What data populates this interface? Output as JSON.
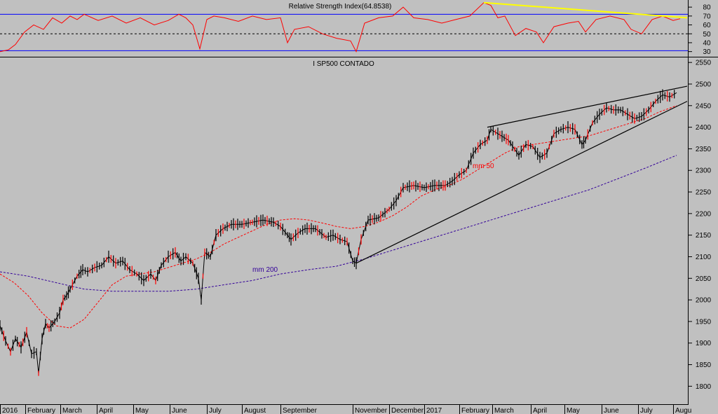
{
  "chart_data": [
    {
      "type": "line",
      "title": "Relative Strength Index(64.8538)",
      "ylim": [
        25,
        88
      ],
      "yticks": [
        30,
        40,
        50,
        60,
        70,
        80
      ],
      "reference_lines": [
        {
          "value": 72,
          "style": "solid",
          "color": "#0000ff"
        },
        {
          "value": 50,
          "style": "dashed",
          "color": "#000000"
        },
        {
          "value": 31,
          "style": "solid",
          "color": "#0000ff"
        }
      ],
      "series": [
        {
          "color": "#ff0000",
          "x": [
            0,
            12,
            22,
            35,
            48,
            62,
            75,
            88,
            100,
            110,
            120,
            140,
            160,
            180,
            200,
            220,
            240,
            255,
            265,
            275,
            285,
            295,
            305,
            320,
            340,
            360,
            380,
            400,
            410,
            420,
            440,
            460,
            480,
            500,
            508,
            520,
            540,
            560,
            575,
            590,
            610,
            630,
            650,
            670,
            690,
            700,
            710,
            720,
            735,
            750,
            765,
            775,
            790,
            810,
            825,
            835,
            850,
            870,
            890,
            900,
            915,
            930,
            945,
            960,
            970
          ],
          "y": [
            30,
            32,
            38,
            52,
            60,
            55,
            68,
            62,
            70,
            66,
            72,
            65,
            70,
            62,
            68,
            60,
            65,
            72,
            68,
            60,
            33,
            66,
            70,
            68,
            64,
            70,
            66,
            68,
            40,
            55,
            58,
            50,
            45,
            42,
            30,
            62,
            68,
            70,
            80,
            68,
            66,
            62,
            66,
            70,
            85,
            82,
            68,
            70,
            48,
            56,
            52,
            40,
            58,
            62,
            64,
            52,
            66,
            70,
            66,
            55,
            50,
            66,
            70,
            65,
            67
          ]
        }
      ],
      "annotations": [
        {
          "type": "trendline",
          "color": "#ffff00",
          "x": [
            690,
            980
          ],
          "y": [
            85,
            68
          ]
        }
      ]
    },
    {
      "type": "line",
      "title": "I SP500 CONTADO",
      "ylim": [
        1760,
        2560
      ],
      "yticks": [
        1800,
        1850,
        1900,
        1950,
        2000,
        2050,
        2100,
        2150,
        2200,
        2250,
        2300,
        2350,
        2400,
        2450,
        2500,
        2550
      ],
      "xlabels": [
        "2016",
        "February",
        "March",
        "April",
        "May",
        "June",
        "July",
        "August",
        "September",
        "November",
        "December",
        "2017",
        "February",
        "March",
        "April",
        "May",
        "June",
        "July",
        "Augu"
      ],
      "series": [
        {
          "name": "price",
          "color": "#000000",
          "x": [
            0,
            8,
            15,
            22,
            30,
            38,
            45,
            52,
            55,
            60,
            65,
            70,
            78,
            85,
            90,
            95,
            100,
            110,
            118,
            125,
            135,
            145,
            155,
            165,
            175,
            185,
            195,
            205,
            215,
            222,
            230,
            240,
            250,
            258,
            265,
            275,
            283,
            287,
            292,
            300,
            308,
            318,
            330,
            345,
            360,
            375,
            390,
            400,
            410,
            415,
            425,
            435,
            450,
            465,
            475,
            485,
            495,
            503,
            508,
            515,
            525,
            540,
            555,
            565,
            575,
            590,
            605,
            620,
            635,
            645,
            655,
            665,
            675,
            685,
            695,
            700,
            710,
            725,
            740,
            750,
            760,
            770,
            780,
            790,
            800,
            810,
            820,
            830,
            835,
            845,
            855,
            865,
            875,
            885,
            895,
            905,
            915,
            925,
            935,
            945,
            955,
            965
          ],
          "y": [
            1940,
            1905,
            1880,
            1910,
            1890,
            1925,
            1875,
            1880,
            1830,
            1910,
            1945,
            1935,
            1950,
            1970,
            2000,
            2010,
            2025,
            2055,
            2070,
            2065,
            2075,
            2080,
            2100,
            2085,
            2090,
            2070,
            2060,
            2045,
            2060,
            2045,
            2080,
            2100,
            2110,
            2090,
            2100,
            2085,
            2050,
            2000,
            2110,
            2100,
            2150,
            2165,
            2175,
            2175,
            2180,
            2185,
            2180,
            2170,
            2150,
            2140,
            2155,
            2165,
            2165,
            2145,
            2150,
            2140,
            2135,
            2090,
            2085,
            2140,
            2185,
            2190,
            2210,
            2230,
            2260,
            2265,
            2260,
            2265,
            2265,
            2275,
            2290,
            2300,
            2340,
            2360,
            2370,
            2395,
            2385,
            2370,
            2335,
            2360,
            2355,
            2330,
            2340,
            2385,
            2395,
            2400,
            2395,
            2360,
            2370,
            2410,
            2430,
            2445,
            2440,
            2440,
            2430,
            2420,
            2425,
            2440,
            2460,
            2475,
            2470,
            2480
          ]
        },
        {
          "name": "mm 50",
          "color": "#ff0000",
          "style": "dashed",
          "x": [
            0,
            20,
            40,
            60,
            80,
            100,
            120,
            140,
            160,
            180,
            200,
            220,
            240,
            260,
            280,
            300,
            320,
            340,
            360,
            380,
            400,
            420,
            440,
            460,
            480,
            500,
            520,
            540,
            560,
            580,
            600,
            620,
            640,
            660,
            680,
            700,
            720,
            740,
            760,
            780,
            800,
            820,
            840,
            860,
            880,
            900,
            920,
            940,
            965
          ],
          "y": [
            2060,
            2040,
            2010,
            1970,
            1940,
            1935,
            1955,
            1995,
            2035,
            2055,
            2060,
            2065,
            2075,
            2085,
            2095,
            2110,
            2130,
            2145,
            2160,
            2175,
            2185,
            2188,
            2185,
            2178,
            2170,
            2165,
            2170,
            2180,
            2195,
            2215,
            2240,
            2255,
            2265,
            2280,
            2300,
            2320,
            2340,
            2355,
            2360,
            2365,
            2370,
            2375,
            2380,
            2390,
            2400,
            2410,
            2420,
            2435,
            2450
          ]
        },
        {
          "name": "mm 200",
          "color": "#330099",
          "style": "dashed",
          "x": [
            0,
            40,
            80,
            120,
            160,
            200,
            240,
            280,
            320,
            360,
            400,
            440,
            480,
            520,
            560,
            600,
            640,
            680,
            720,
            760,
            800,
            840,
            880,
            920,
            965
          ],
          "y": [
            2065,
            2055,
            2040,
            2025,
            2020,
            2020,
            2020,
            2025,
            2035,
            2045,
            2060,
            2070,
            2078,
            2095,
            2115,
            2135,
            2155,
            2175,
            2195,
            2215,
            2235,
            2255,
            2280,
            2305,
            2335
          ]
        }
      ],
      "annotations": [
        {
          "type": "trendline",
          "color": "#000000",
          "x": [
            508,
            980
          ],
          "y": [
            2085,
            2460
          ]
        },
        {
          "type": "trendline",
          "color": "#000000",
          "x": [
            695,
            980
          ],
          "y": [
            2400,
            2495
          ]
        }
      ]
    }
  ],
  "labels": {
    "mm50_label": "mm 50",
    "mm200_label": "mm 200"
  }
}
